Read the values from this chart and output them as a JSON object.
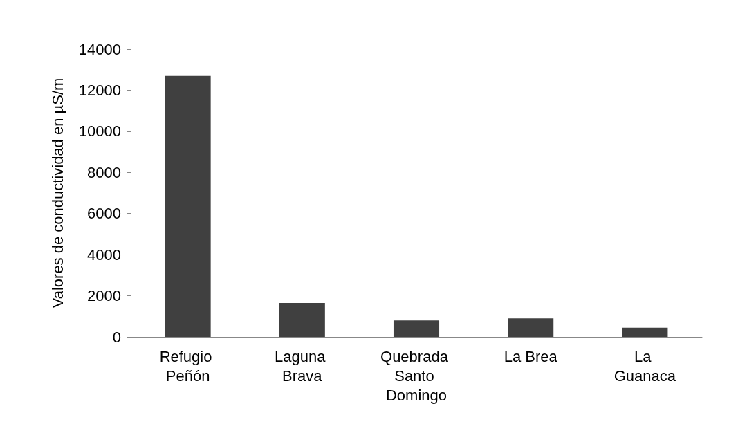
{
  "chart_data": {
    "type": "bar",
    "ylabel": "Valores de conductividad en µS/m",
    "categories": [
      "Refugio Peñón",
      "Laguna Brava",
      "Quebrada Santo Domingo",
      "La Brea",
      "La Guanaca"
    ],
    "values": [
      12700,
      1650,
      800,
      900,
      450
    ],
    "color": "#404040",
    "ylim": [
      0,
      14000
    ],
    "yticks": [
      0,
      2000,
      4000,
      6000,
      8000,
      10000,
      12000,
      14000
    ],
    "grid": false
  }
}
